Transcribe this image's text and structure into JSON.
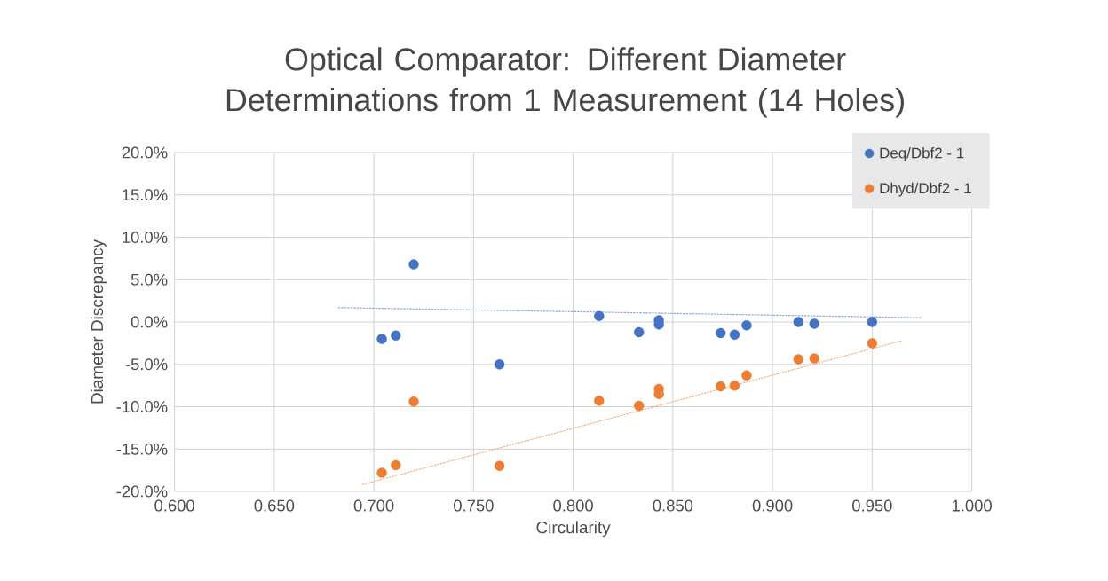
{
  "chart_data": {
    "type": "scatter",
    "title": "Optical Comparator: Different Diameter Determinations from 1 Measurement (14 Holes)",
    "xlabel": "Circularity",
    "ylabel": "Diameter Discrepancy",
    "series": [
      {
        "name": "Deq/Dbf2 - 1",
        "color": "#4472c4",
        "marker": "circle",
        "x": [
          0.704,
          0.711,
          0.72,
          0.763,
          0.813,
          0.833,
          0.843,
          0.843,
          0.874,
          0.881,
          0.887,
          0.913,
          0.921,
          0.95
        ],
        "values": [
          -2.0,
          -1.6,
          6.8,
          -5.0,
          0.7,
          -1.2,
          0.2,
          -0.3,
          -1.3,
          -1.5,
          -0.4,
          0.0,
          -0.2,
          0.0
        ]
      },
      {
        "name": "Dhyd/Dbf2 - 1",
        "color": "#ed7d31",
        "marker": "circle",
        "x": [
          0.704,
          0.711,
          0.72,
          0.763,
          0.813,
          0.833,
          0.843,
          0.843,
          0.874,
          0.881,
          0.887,
          0.913,
          0.921,
          0.95
        ],
        "values": [
          -17.8,
          -16.9,
          -9.4,
          -17.0,
          -9.3,
          -9.9,
          -7.9,
          -8.5,
          -7.6,
          -7.5,
          -6.3,
          -4.4,
          -4.3,
          -2.5
        ]
      },
      {
        "type": "line",
        "color": "#8faadc",
        "line_style": "dashed",
        "marker": "none",
        "x": [
          0.682,
          0.975
        ],
        "values": [
          1.7,
          0.5
        ]
      },
      {
        "type": "line",
        "color": "#f4b183",
        "line_style": "dashed",
        "marker": "none",
        "x": [
          0.694,
          0.965
        ],
        "values": [
          -19.2,
          -2.2
        ]
      }
    ],
    "xlim": [
      0.6,
      1.0
    ],
    "xticks": [
      {
        "value": 0.6,
        "label": "0.600"
      },
      {
        "value": 0.65,
        "label": "0.650"
      },
      {
        "value": 0.7,
        "label": "0.700"
      },
      {
        "value": 0.75,
        "label": "0.750"
      },
      {
        "value": 0.8,
        "label": "0.800"
      },
      {
        "value": 0.85,
        "label": "0.850"
      },
      {
        "value": 0.9,
        "label": "0.900"
      },
      {
        "value": 0.95,
        "label": "0.950"
      },
      {
        "value": 1.0,
        "label": "1.000"
      }
    ],
    "ylim": [
      -20,
      20
    ],
    "yticks": [
      {
        "value": -20,
        "label": "-20.0%"
      },
      {
        "value": -15,
        "label": "-15.0%"
      },
      {
        "value": -10,
        "label": "-10.0%"
      },
      {
        "value": -5,
        "label": "-5.0%"
      },
      {
        "value": 0,
        "label": "0.0%"
      },
      {
        "value": 5,
        "label": "5.0%"
      },
      {
        "value": 10,
        "label": "10.0%"
      },
      {
        "value": 15,
        "label": "15.0%"
      },
      {
        "value": 20,
        "label": "20.0%"
      }
    ],
    "grid": true,
    "legend": "top right"
  }
}
